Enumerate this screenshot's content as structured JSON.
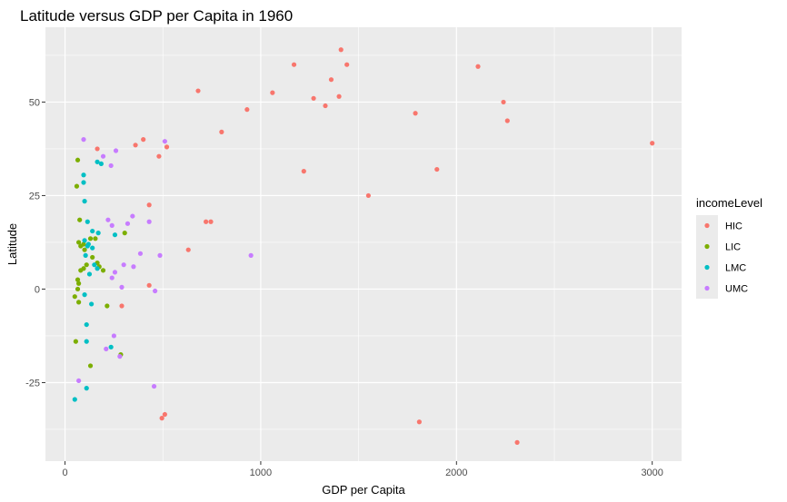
{
  "chart_data": {
    "type": "scatter",
    "title": "Latitude versus GDP per Capita in 1960",
    "xlabel": "GDP per Capita",
    "ylabel": "Latitude",
    "xlim": [
      -100,
      3150
    ],
    "ylim": [
      -46,
      70
    ],
    "xticks": [
      0,
      1000,
      2000,
      3000
    ],
    "xtick_labels": [
      "0",
      "1000",
      "2000",
      "3000"
    ],
    "yticks": [
      -25,
      0,
      25,
      50
    ],
    "ytick_labels": [
      "-25",
      "0",
      "25",
      "50"
    ],
    "grid": true,
    "legend": {
      "title": "incomeLevel",
      "placement": "right"
    },
    "series": [
      {
        "name": "HIC",
        "color": "#F8766D",
        "points": [
          [
            1410,
            64
          ],
          [
            1170,
            60
          ],
          [
            1440,
            60
          ],
          [
            1360,
            56
          ],
          [
            2110,
            59.5
          ],
          [
            680,
            53
          ],
          [
            1060,
            52.5
          ],
          [
            1270,
            51
          ],
          [
            1400,
            51.5
          ],
          [
            1330,
            49
          ],
          [
            930,
            48
          ],
          [
            2240,
            50
          ],
          [
            2260,
            45
          ],
          [
            1790,
            47
          ],
          [
            800,
            42
          ],
          [
            3000,
            39
          ],
          [
            400,
            40
          ],
          [
            360,
            38.5
          ],
          [
            520,
            38
          ],
          [
            480,
            35.5
          ],
          [
            165,
            37.5
          ],
          [
            1220,
            31.5
          ],
          [
            1900,
            32
          ],
          [
            1550,
            25
          ],
          [
            430,
            22.5
          ],
          [
            720,
            18
          ],
          [
            745,
            18
          ],
          [
            630,
            10.5
          ],
          [
            430,
            1
          ],
          [
            290,
            -4.5
          ],
          [
            510,
            -33.5
          ],
          [
            495,
            -34.5
          ],
          [
            1810,
            -35.5
          ],
          [
            2310,
            -41
          ]
        ]
      },
      {
        "name": "LIC",
        "color": "#7CAE00",
        "points": [
          [
            65,
            34.5
          ],
          [
            60,
            27.5
          ],
          [
            75,
            18.5
          ],
          [
            130,
            13.5
          ],
          [
            70,
            12.5
          ],
          [
            95,
            12
          ],
          [
            155,
            13.5
          ],
          [
            305,
            15
          ],
          [
            80,
            11.5
          ],
          [
            100,
            10.5
          ],
          [
            140,
            8.5
          ],
          [
            165,
            7
          ],
          [
            175,
            6
          ],
          [
            110,
            6.5
          ],
          [
            95,
            5.5
          ],
          [
            80,
            5
          ],
          [
            195,
            5
          ],
          [
            65,
            2.5
          ],
          [
            70,
            1.5
          ],
          [
            65,
            0
          ],
          [
            50,
            -2
          ],
          [
            70,
            -3.5
          ],
          [
            215,
            -4.5
          ],
          [
            55,
            -14
          ],
          [
            130,
            -20.5
          ],
          [
            285,
            -17.5
          ]
        ]
      },
      {
        "name": "LMC",
        "color": "#00BFC4",
        "points": [
          [
            95,
            30.5
          ],
          [
            95,
            28.5
          ],
          [
            165,
            34
          ],
          [
            185,
            33.5
          ],
          [
            100,
            23.5
          ],
          [
            115,
            18
          ],
          [
            140,
            15.5
          ],
          [
            170,
            15
          ],
          [
            255,
            14.5
          ],
          [
            100,
            13
          ],
          [
            120,
            12
          ],
          [
            115,
            11.5
          ],
          [
            140,
            11
          ],
          [
            105,
            9
          ],
          [
            150,
            6.5
          ],
          [
            165,
            5.5
          ],
          [
            125,
            4
          ],
          [
            100,
            -1.5
          ],
          [
            135,
            -4
          ],
          [
            110,
            -9.5
          ],
          [
            110,
            -14
          ],
          [
            235,
            -15.5
          ],
          [
            110,
            -26.5
          ],
          [
            50,
            -29.5
          ]
        ]
      },
      {
        "name": "UMC",
        "color": "#C77CFF",
        "points": [
          [
            95,
            40
          ],
          [
            510,
            39.5
          ],
          [
            260,
            37
          ],
          [
            195,
            35.5
          ],
          [
            235,
            33
          ],
          [
            220,
            18.5
          ],
          [
            345,
            19.5
          ],
          [
            430,
            18
          ],
          [
            240,
            17
          ],
          [
            320,
            17.5
          ],
          [
            385,
            9.5
          ],
          [
            485,
            9
          ],
          [
            950,
            9
          ],
          [
            255,
            4.5
          ],
          [
            300,
            6.5
          ],
          [
            350,
            6
          ],
          [
            240,
            3
          ],
          [
            290,
            0.5
          ],
          [
            460,
            -0.5
          ],
          [
            210,
            -16
          ],
          [
            250,
            -12.5
          ],
          [
            280,
            -18
          ],
          [
            455,
            -26
          ],
          [
            70,
            -24.5
          ]
        ]
      }
    ]
  }
}
